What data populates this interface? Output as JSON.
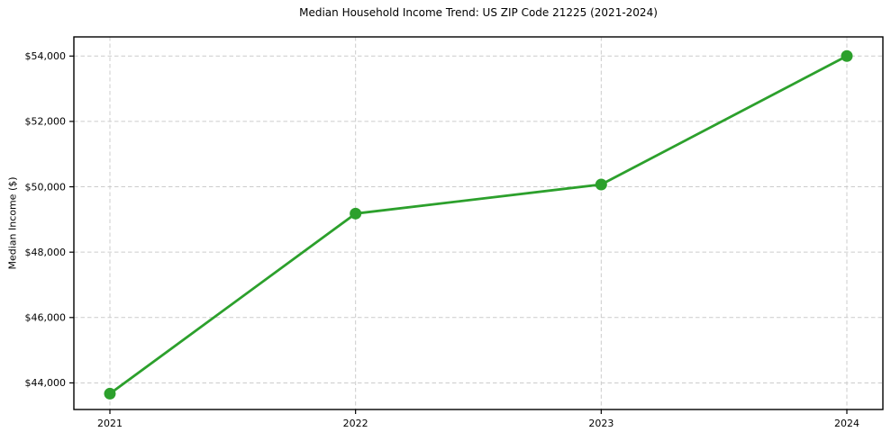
{
  "chart_data": {
    "type": "line",
    "title": "Median Household Income Trend: US ZIP Code 21225 (2021-2024)",
    "xlabel": "",
    "ylabel": "Median Income ($)",
    "categories": [
      "2021",
      "2022",
      "2023",
      "2024"
    ],
    "values": [
      43670,
      49180,
      50070,
      54000
    ],
    "ytick_values": [
      44000,
      46000,
      48000,
      50000,
      52000,
      54000
    ],
    "ytick_labels": [
      "$44,000",
      "$46,000",
      "$48,000",
      "$50,000",
      "$52,000",
      "$54,000"
    ],
    "ylim": [
      43186,
      54586
    ],
    "grid": "dashed, both axes",
    "legend": "none",
    "colors": {
      "line": "#2ca02c",
      "marker": "#2ca02c",
      "grid": "#cccccc",
      "axis": "#000000",
      "text": "#000000",
      "background": "#ffffff"
    }
  }
}
